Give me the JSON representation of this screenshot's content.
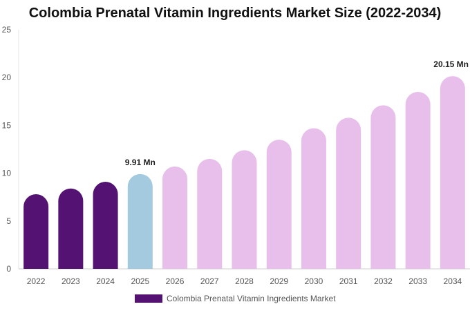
{
  "chart_data": {
    "type": "bar",
    "title": "Colombia Prenatal Vitamin Ingredients Market Size (2022-2034)",
    "categories": [
      "2022",
      "2023",
      "2024",
      "2025",
      "2026",
      "2027",
      "2028",
      "2029",
      "2030",
      "2031",
      "2032",
      "2033",
      "2034"
    ],
    "series": [
      {
        "name": "Colombia Prenatal Vitamin Ingredients Market",
        "values": [
          7.8,
          8.4,
          9.1,
          9.91,
          10.7,
          11.5,
          12.4,
          13.5,
          14.7,
          15.8,
          17.1,
          18.5,
          20.15
        ]
      }
    ],
    "data_labels": [
      {
        "category": "2025",
        "text": "9.91 Mn"
      },
      {
        "category": "2034",
        "text": "20.15 Mn"
      }
    ],
    "ylim": [
      0,
      25
    ],
    "yticks": [
      0,
      5,
      10,
      15,
      20,
      25
    ],
    "xlabel": "",
    "ylabel": "",
    "grid": false,
    "legend_position": "bottom",
    "colors": {
      "historical": "#541373",
      "current": "#a3cadf",
      "forecast": "#e7bfea",
      "legend": "#541373"
    },
    "color_groups": [
      "historical",
      "historical",
      "historical",
      "current",
      "forecast",
      "forecast",
      "forecast",
      "forecast",
      "forecast",
      "forecast",
      "forecast",
      "forecast",
      "forecast"
    ]
  }
}
